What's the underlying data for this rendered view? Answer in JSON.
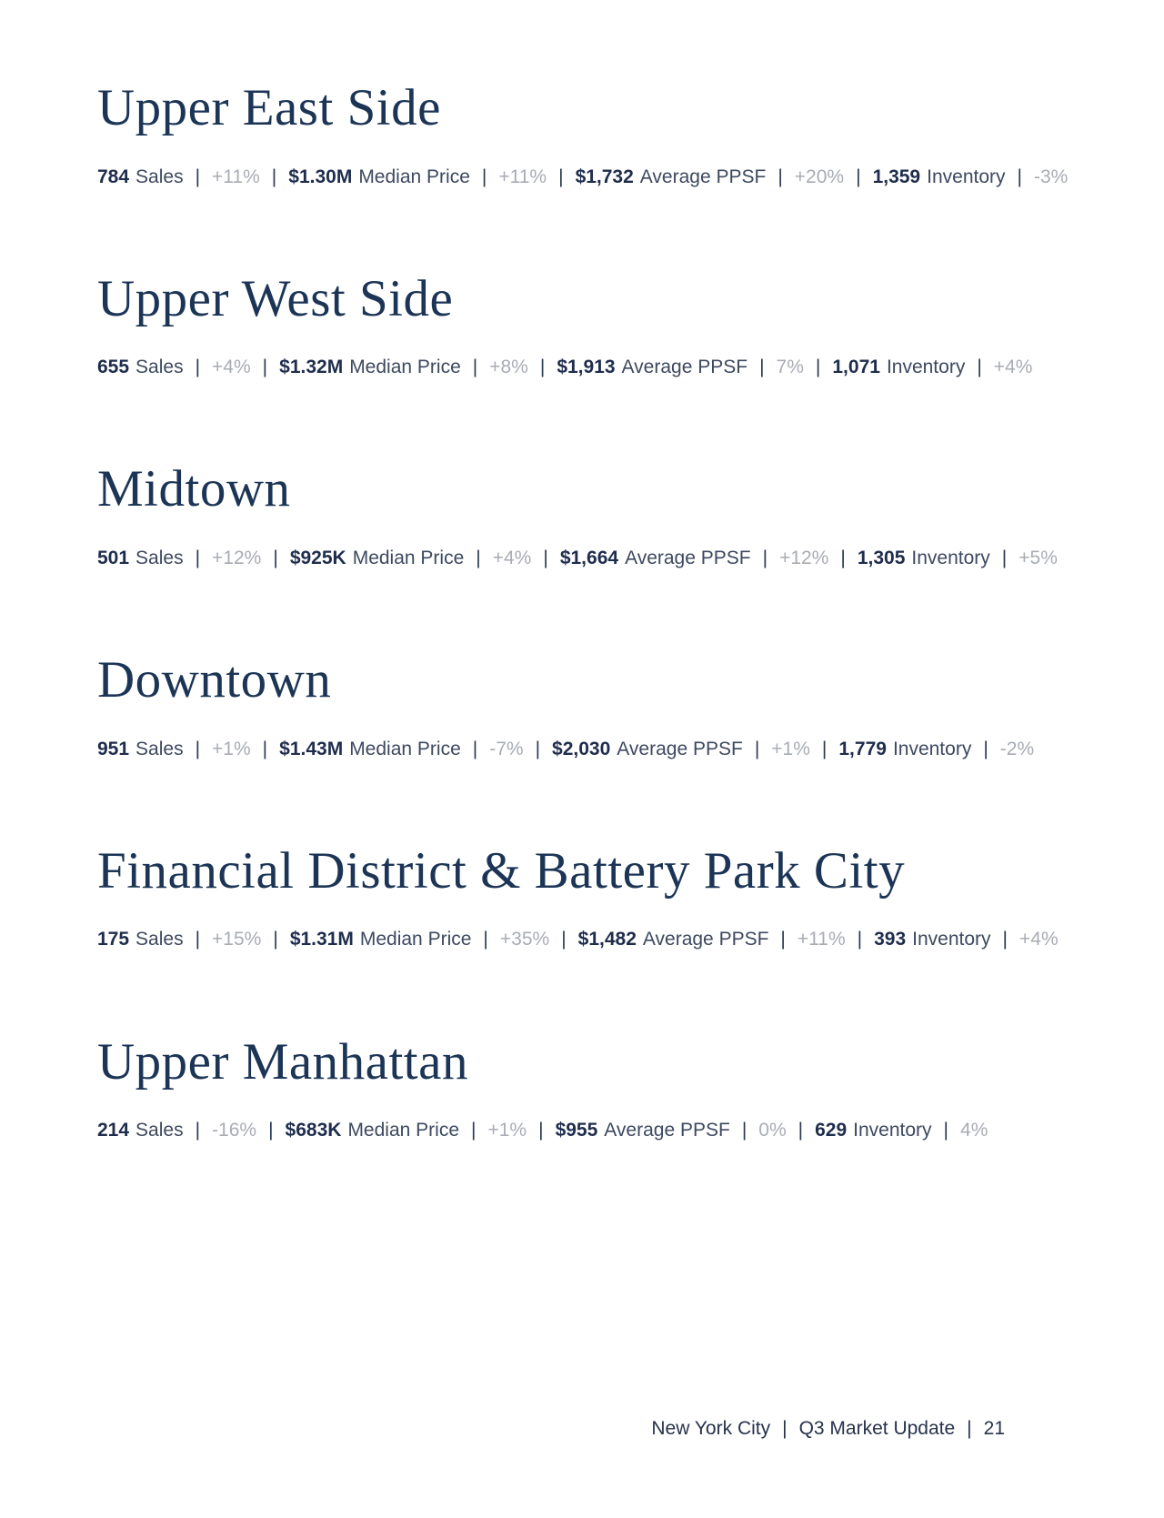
{
  "separator": "|",
  "sections": [
    {
      "title": "Upper East Side",
      "stats": [
        {
          "value": "784",
          "label": "Sales",
          "change": "+11%"
        },
        {
          "value": "$1.30M",
          "label": "Median Price",
          "change": "+11%"
        },
        {
          "value": "$1,732",
          "label": "Average PPSF",
          "change": "+20%"
        },
        {
          "value": "1,359",
          "label": "Inventory",
          "change": "-3%"
        }
      ]
    },
    {
      "title": "Upper West Side",
      "stats": [
        {
          "value": "655",
          "label": "Sales",
          "change": "+4%"
        },
        {
          "value": "$1.32M",
          "label": "Median Price",
          "change": "+8%"
        },
        {
          "value": "$1,913",
          "label": "Average PPSF",
          "change": "7%"
        },
        {
          "value": "1,071",
          "label": "Inventory",
          "change": "+4%"
        }
      ]
    },
    {
      "title": "Midtown",
      "stats": [
        {
          "value": "501",
          "label": "Sales",
          "change": "+12%"
        },
        {
          "value": "$925K",
          "label": "Median Price",
          "change": "+4%"
        },
        {
          "value": "$1,664",
          "label": "Average PPSF",
          "change": "+12%"
        },
        {
          "value": "1,305",
          "label": "Inventory",
          "change": "+5%"
        }
      ]
    },
    {
      "title": "Downtown",
      "stats": [
        {
          "value": "951",
          "label": "Sales",
          "change": "+1%"
        },
        {
          "value": "$1.43M",
          "label": "Median Price",
          "change": "-7%"
        },
        {
          "value": "$2,030",
          "label": "Average PPSF",
          "change": "+1%"
        },
        {
          "value": "1,779",
          "label": "Inventory",
          "change": "-2%"
        }
      ]
    },
    {
      "title": "Financial District & Battery Park City",
      "stats": [
        {
          "value": "175",
          "label": "Sales",
          "change": "+15%"
        },
        {
          "value": "$1.31M",
          "label": "Median Price",
          "change": "+35%"
        },
        {
          "value": "$1,482",
          "label": "Average PPSF",
          "change": "+11%"
        },
        {
          "value": "393",
          "label": "Inventory",
          "change": "+4%"
        }
      ]
    },
    {
      "title": "Upper Manhattan",
      "stats": [
        {
          "value": "214",
          "label": "Sales",
          "change": "-16%"
        },
        {
          "value": "$683K",
          "label": "Median Price",
          "change": "+1%"
        },
        {
          "value": "$955",
          "label": "Average PPSF",
          "change": "0%"
        },
        {
          "value": "629",
          "label": "Inventory",
          "change": "4%"
        }
      ]
    }
  ],
  "footer": {
    "items": [
      "New York City",
      "Q3 Market Update",
      "21"
    ]
  }
}
